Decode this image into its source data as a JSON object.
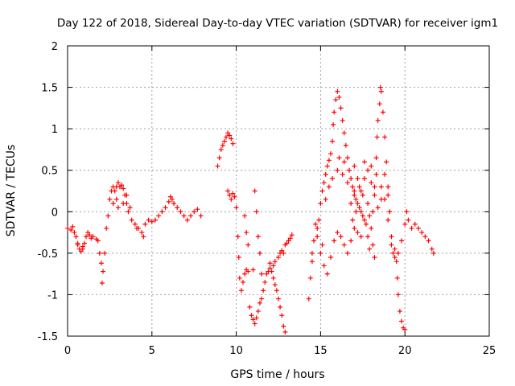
{
  "chart_data": {
    "type": "scatter",
    "title": "Day 122 of 2018, Sidereal Day-to-day VTEC variation (SDTVAR) for receiver igm1",
    "xlabel": "GPS time / hours",
    "ylabel": "SDTVAR / TECUs",
    "xlim": [
      0,
      25
    ],
    "ylim": [
      -1.5,
      2
    ],
    "xticks": [
      0,
      5,
      10,
      15,
      20,
      25
    ],
    "yticks": [
      -1.5,
      -1,
      -0.5,
      0,
      0.5,
      1,
      1.5,
      2
    ],
    "xtick_labels": [
      "0",
      "5",
      "10",
      "15",
      "20",
      "25"
    ],
    "ytick_labels": [
      "-1.5",
      "-1",
      "-0.5",
      "0",
      "0.5",
      "1",
      "1.5",
      "2"
    ],
    "grid": true,
    "marker": "+",
    "series": [
      {
        "name": "SDTVAR",
        "color": "#ff0000",
        "points": [
          [
            0.0,
            -0.2
          ],
          [
            0.2,
            -0.22
          ],
          [
            0.4,
            -0.25
          ],
          [
            0.5,
            -0.3
          ],
          [
            0.6,
            -0.38
          ],
          [
            0.7,
            -0.45
          ],
          [
            0.8,
            -0.48
          ],
          [
            0.9,
            -0.42
          ],
          [
            1.0,
            -0.38
          ],
          [
            1.1,
            -0.3
          ],
          [
            1.2,
            -0.25
          ],
          [
            1.3,
            -0.28
          ],
          [
            1.5,
            -0.3
          ],
          [
            1.7,
            -0.33
          ],
          [
            1.8,
            -0.35
          ],
          [
            1.9,
            -0.5
          ],
          [
            2.0,
            -0.62
          ],
          [
            2.05,
            -0.86
          ],
          [
            2.1,
            -0.72
          ],
          [
            2.2,
            -0.5
          ],
          [
            2.3,
            -0.2
          ],
          [
            2.4,
            -0.05
          ],
          [
            2.5,
            0.15
          ],
          [
            2.6,
            0.25
          ],
          [
            2.7,
            0.3
          ],
          [
            2.8,
            0.25
          ],
          [
            2.9,
            0.3
          ],
          [
            3.0,
            0.35
          ],
          [
            3.1,
            0.3
          ],
          [
            3.2,
            0.32
          ],
          [
            3.3,
            0.28
          ],
          [
            3.4,
            0.2
          ],
          [
            3.5,
            0.1
          ],
          [
            3.6,
            0.0
          ],
          [
            3.8,
            -0.1
          ],
          [
            4.0,
            -0.15
          ],
          [
            4.2,
            -0.2
          ],
          [
            4.4,
            -0.25
          ],
          [
            4.6,
            -0.15
          ],
          [
            4.8,
            -0.1
          ],
          [
            5.0,
            -0.12
          ],
          [
            5.2,
            -0.1
          ],
          [
            5.4,
            -0.05
          ],
          [
            5.6,
            0.0
          ],
          [
            5.8,
            0.05
          ],
          [
            6.0,
            0.12
          ],
          [
            6.1,
            0.18
          ],
          [
            6.2,
            0.15
          ],
          [
            6.3,
            0.1
          ],
          [
            6.5,
            0.05
          ],
          [
            6.7,
            0.0
          ],
          [
            6.9,
            -0.05
          ],
          [
            7.1,
            -0.1
          ],
          [
            7.3,
            -0.05
          ],
          [
            7.5,
            0.0
          ],
          [
            7.7,
            0.03
          ],
          [
            7.9,
            -0.05
          ],
          [
            0.3,
            -0.18
          ],
          [
            0.6,
            -0.4
          ],
          [
            0.9,
            -0.45
          ],
          [
            1.4,
            -0.32
          ],
          [
            2.7,
            0.1
          ],
          [
            2.9,
            0.15
          ],
          [
            3.0,
            0.05
          ],
          [
            3.3,
            0.1
          ],
          [
            3.5,
            0.2
          ],
          [
            3.7,
            0.05
          ],
          [
            4.1,
            -0.2
          ],
          [
            4.5,
            -0.3
          ],
          [
            8.9,
            0.55
          ],
          [
            9.0,
            0.65
          ],
          [
            9.1,
            0.75
          ],
          [
            9.2,
            0.8
          ],
          [
            9.3,
            0.85
          ],
          [
            9.4,
            0.9
          ],
          [
            9.5,
            0.95
          ],
          [
            9.6,
            0.92
          ],
          [
            9.7,
            0.88
          ],
          [
            9.8,
            0.82
          ],
          [
            9.5,
            0.25
          ],
          [
            9.6,
            0.2
          ],
          [
            9.7,
            0.15
          ],
          [
            9.8,
            0.22
          ],
          [
            9.9,
            0.18
          ],
          [
            10.0,
            0.05
          ],
          [
            10.1,
            -0.3
          ],
          [
            10.15,
            -0.55
          ],
          [
            10.2,
            -0.8
          ],
          [
            10.3,
            -0.95
          ],
          [
            10.4,
            -0.85
          ],
          [
            10.5,
            -0.75
          ],
          [
            10.6,
            -0.7
          ],
          [
            10.7,
            -0.72
          ],
          [
            10.8,
            -1.15
          ],
          [
            10.9,
            -1.25
          ],
          [
            11.0,
            -1.3
          ],
          [
            11.1,
            -1.35
          ],
          [
            11.2,
            -1.28
          ],
          [
            11.3,
            -1.2
          ],
          [
            11.4,
            -1.1
          ],
          [
            11.5,
            -1.05
          ],
          [
            11.6,
            -0.95
          ],
          [
            11.7,
            -0.85
          ],
          [
            11.8,
            -0.75
          ],
          [
            11.9,
            -0.72
          ],
          [
            12.0,
            -0.62
          ],
          [
            12.2,
            -0.65
          ],
          [
            12.3,
            -0.6
          ],
          [
            12.5,
            -0.55
          ],
          [
            12.6,
            -0.5
          ],
          [
            12.7,
            -0.47
          ],
          [
            12.8,
            -0.5
          ],
          [
            12.9,
            -0.4
          ],
          [
            13.0,
            -0.38
          ],
          [
            13.1,
            -0.35
          ],
          [
            13.2,
            -0.32
          ],
          [
            13.3,
            -0.28
          ],
          [
            10.5,
            -0.05
          ],
          [
            10.6,
            -0.25
          ],
          [
            10.7,
            -0.4
          ],
          [
            11.1,
            0.25
          ],
          [
            11.2,
            0.0
          ],
          [
            11.3,
            -0.3
          ],
          [
            11.4,
            -0.5
          ],
          [
            12.1,
            -0.72
          ],
          [
            12.2,
            -0.8
          ],
          [
            12.3,
            -0.88
          ],
          [
            12.4,
            -0.95
          ],
          [
            12.5,
            -1.05
          ],
          [
            12.6,
            -1.15
          ],
          [
            12.7,
            -1.25
          ],
          [
            12.8,
            -1.38
          ],
          [
            12.9,
            -1.45
          ],
          [
            11.0,
            -0.7
          ],
          [
            11.5,
            -0.75
          ],
          [
            12.0,
            -0.68
          ],
          [
            14.3,
            -1.05
          ],
          [
            14.4,
            -0.8
          ],
          [
            14.5,
            -0.6
          ],
          [
            14.6,
            -0.35
          ],
          [
            14.8,
            -0.2
          ],
          [
            14.9,
            -0.1
          ],
          [
            15.0,
            0.1
          ],
          [
            15.1,
            0.25
          ],
          [
            15.2,
            0.35
          ],
          [
            15.3,
            0.45
          ],
          [
            15.4,
            0.55
          ],
          [
            15.5,
            0.62
          ],
          [
            15.6,
            0.7
          ],
          [
            15.7,
            0.85
          ],
          [
            15.75,
            1.05
          ],
          [
            15.8,
            1.2
          ],
          [
            15.9,
            1.35
          ],
          [
            16.0,
            1.45
          ],
          [
            16.1,
            1.38
          ],
          [
            16.2,
            1.25
          ],
          [
            16.3,
            1.1
          ],
          [
            16.4,
            0.95
          ],
          [
            16.5,
            0.8
          ],
          [
            16.6,
            0.65
          ],
          [
            16.7,
            0.5
          ],
          [
            16.8,
            0.4
          ],
          [
            16.9,
            0.3
          ],
          [
            17.0,
            0.2
          ],
          [
            17.1,
            0.15
          ],
          [
            17.2,
            0.1
          ],
          [
            17.3,
            0.05
          ],
          [
            17.4,
            0.0
          ],
          [
            17.5,
            -0.05
          ],
          [
            17.6,
            -0.1
          ],
          [
            17.7,
            -0.15
          ],
          [
            17.8,
            -0.3
          ],
          [
            17.9,
            -0.45
          ],
          [
            18.0,
            -0.2
          ],
          [
            18.1,
            0.0
          ],
          [
            18.2,
            0.3
          ],
          [
            18.3,
            0.65
          ],
          [
            18.35,
            0.9
          ],
          [
            18.4,
            1.1
          ],
          [
            18.5,
            1.3
          ],
          [
            18.55,
            1.5
          ],
          [
            18.6,
            1.45
          ],
          [
            18.7,
            1.2
          ],
          [
            18.8,
            0.9
          ],
          [
            18.9,
            0.6
          ],
          [
            19.0,
            0.3
          ],
          [
            19.1,
            0.0
          ],
          [
            19.2,
            -0.3
          ],
          [
            19.3,
            -0.5
          ],
          [
            19.4,
            -0.45
          ],
          [
            19.5,
            -0.6
          ],
          [
            19.55,
            -0.8
          ],
          [
            19.6,
            -1.0
          ],
          [
            19.7,
            -1.2
          ],
          [
            19.8,
            -1.32
          ],
          [
            19.9,
            -1.4
          ],
          [
            20.0,
            -1.42
          ],
          [
            14.8,
            -0.3
          ],
          [
            15.0,
            -0.5
          ],
          [
            15.2,
            -0.65
          ],
          [
            15.4,
            -0.75
          ],
          [
            15.6,
            -0.55
          ],
          [
            15.8,
            -0.35
          ],
          [
            16.0,
            -0.25
          ],
          [
            16.2,
            -0.3
          ],
          [
            16.4,
            -0.4
          ],
          [
            16.6,
            -0.5
          ],
          [
            16.8,
            -0.35
          ],
          [
            17.0,
            -0.2
          ],
          [
            17.2,
            -0.25
          ],
          [
            17.4,
            -0.3
          ],
          [
            15.5,
            0.3
          ],
          [
            15.7,
            0.4
          ],
          [
            16.0,
            0.5
          ],
          [
            16.3,
            0.45
          ],
          [
            16.6,
            0.35
          ],
          [
            17.0,
            0.25
          ],
          [
            17.3,
            0.3
          ],
          [
            17.6,
            0.4
          ],
          [
            18.0,
            0.55
          ],
          [
            18.3,
            0.45
          ],
          [
            18.6,
            0.3
          ],
          [
            18.8,
            0.15
          ],
          [
            19.0,
            -0.1
          ],
          [
            19.2,
            -0.4
          ],
          [
            19.4,
            -0.55
          ],
          [
            19.6,
            -0.5
          ],
          [
            19.8,
            -0.35
          ],
          [
            20.0,
            -0.15
          ],
          [
            20.1,
            0.0
          ],
          [
            20.2,
            -0.1
          ],
          [
            20.4,
            -0.2
          ],
          [
            20.6,
            -0.15
          ],
          [
            20.8,
            -0.2
          ],
          [
            21.0,
            -0.25
          ],
          [
            21.2,
            -0.3
          ],
          [
            21.4,
            -0.35
          ],
          [
            21.6,
            -0.45
          ],
          [
            21.7,
            -0.5
          ],
          [
            17.2,
            0.4
          ],
          [
            17.4,
            0.25
          ],
          [
            17.6,
            0.6
          ],
          [
            17.8,
            0.5
          ],
          [
            18.0,
            0.35
          ],
          [
            18.2,
            0.2
          ],
          [
            18.4,
            0.05
          ],
          [
            18.6,
            0.15
          ],
          [
            18.8,
            0.45
          ],
          [
            19.0,
            0.2
          ],
          [
            17.8,
            0.1
          ],
          [
            17.9,
            -0.05
          ],
          [
            18.1,
            -0.4
          ],
          [
            18.2,
            -0.55
          ],
          [
            16.8,
            0.1
          ],
          [
            16.9,
            -0.1
          ],
          [
            17.1,
            0.0
          ],
          [
            14.5,
            -0.5
          ],
          [
            14.7,
            -0.15
          ],
          [
            15.1,
            -0.4
          ],
          [
            15.3,
            0.15
          ],
          [
            16.1,
            0.65
          ],
          [
            16.4,
            0.6
          ],
          [
            17.0,
            0.55
          ],
          [
            17.5,
            0.2
          ]
        ]
      }
    ]
  }
}
